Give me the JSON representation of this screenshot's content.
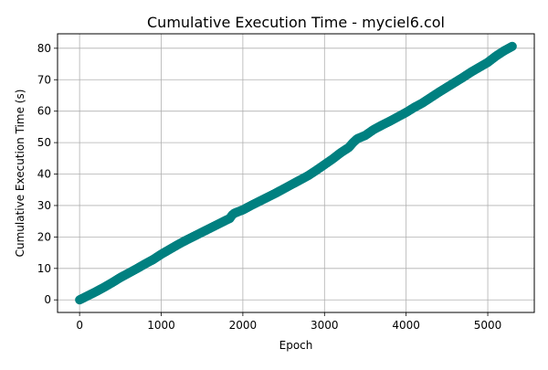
{
  "chart_data": {
    "type": "scatter",
    "title": "Cumulative Execution Time - myciel6.col",
    "xlabel": "Epoch",
    "ylabel": "Cumulative Execution Time (s)",
    "xlim": [
      -270,
      5570
    ],
    "ylim": [
      -4,
      84.6
    ],
    "xticks": [
      0,
      1000,
      2000,
      3000,
      4000,
      5000
    ],
    "yticks": [
      0,
      10,
      20,
      30,
      40,
      50,
      60,
      70,
      80
    ],
    "grid": true,
    "series": [
      {
        "color": "#008080",
        "marker": "circle",
        "points": [
          [
            0,
            0.0
          ],
          [
            100,
            1.3
          ],
          [
            200,
            2.6
          ],
          [
            300,
            4.0
          ],
          [
            400,
            5.5
          ],
          [
            500,
            7.1
          ],
          [
            600,
            8.5
          ],
          [
            700,
            9.9
          ],
          [
            800,
            11.4
          ],
          [
            900,
            12.8
          ],
          [
            1000,
            14.5
          ],
          [
            1100,
            16.0
          ],
          [
            1200,
            17.5
          ],
          [
            1300,
            18.9
          ],
          [
            1400,
            20.2
          ],
          [
            1500,
            21.5
          ],
          [
            1600,
            22.8
          ],
          [
            1700,
            24.1
          ],
          [
            1800,
            25.4
          ],
          [
            1840,
            25.9
          ],
          [
            1870,
            27.0
          ],
          [
            1900,
            27.6
          ],
          [
            2000,
            28.6
          ],
          [
            2100,
            30.0
          ],
          [
            2200,
            31.3
          ],
          [
            2300,
            32.6
          ],
          [
            2400,
            33.9
          ],
          [
            2500,
            35.3
          ],
          [
            2600,
            36.7
          ],
          [
            2700,
            38.1
          ],
          [
            2800,
            39.5
          ],
          [
            2900,
            41.2
          ],
          [
            3000,
            43.0
          ],
          [
            3100,
            44.8
          ],
          [
            3200,
            46.8
          ],
          [
            3300,
            48.5
          ],
          [
            3350,
            50.0
          ],
          [
            3400,
            51.2
          ],
          [
            3500,
            52.3
          ],
          [
            3600,
            54.1
          ],
          [
            3700,
            55.5
          ],
          [
            3800,
            56.8
          ],
          [
            3900,
            58.2
          ],
          [
            4000,
            59.6
          ],
          [
            4100,
            61.2
          ],
          [
            4200,
            62.6
          ],
          [
            4300,
            64.3
          ],
          [
            4400,
            66.0
          ],
          [
            4500,
            67.6
          ],
          [
            4600,
            69.2
          ],
          [
            4700,
            70.8
          ],
          [
            4800,
            72.5
          ],
          [
            4900,
            74.0
          ],
          [
            5000,
            75.5
          ],
          [
            5100,
            77.5
          ],
          [
            5200,
            79.2
          ],
          [
            5300,
            80.6
          ]
        ]
      }
    ]
  }
}
